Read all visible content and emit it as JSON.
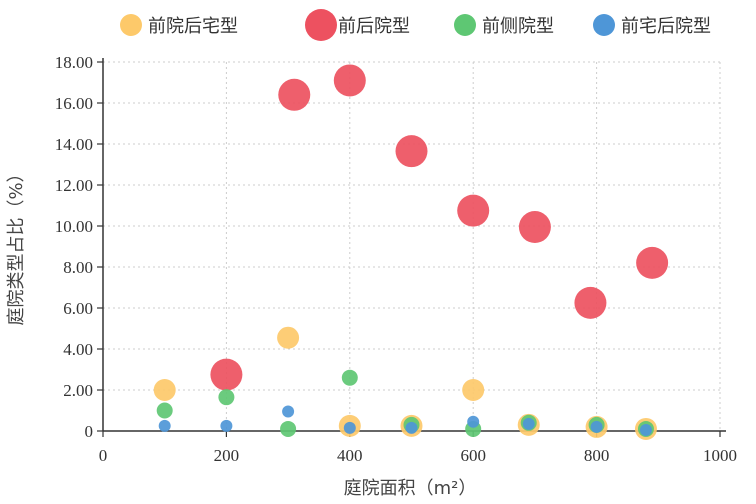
{
  "chart_data": {
    "type": "scatter",
    "xlabel": "庭院面积（m²）",
    "ylabel": "庭院类型占比（%）",
    "xlim": [
      0,
      1000
    ],
    "ylim": [
      0,
      18
    ],
    "x_ticks": [
      "0",
      "200",
      "400",
      "600",
      "800",
      "1000"
    ],
    "y_ticks": [
      "0",
      "2.00",
      "4.00",
      "6.00",
      "8.00",
      "10.00",
      "12.00",
      "14.00",
      "16.00",
      "18.00"
    ],
    "grid": "dotted",
    "legend_position": "top",
    "series": [
      {
        "name": "前院后宅型",
        "color": "#fdc96a",
        "points": [
          [
            100,
            2.0
          ],
          [
            300,
            4.55
          ],
          [
            400,
            0.25
          ],
          [
            500,
            0.25
          ],
          [
            600,
            2.0
          ],
          [
            690,
            0.3
          ],
          [
            800,
            0.2
          ],
          [
            880,
            0.1
          ]
        ]
      },
      {
        "name": "前后院型",
        "color": "#ed5160",
        "points": [
          [
            200,
            2.75
          ],
          [
            310,
            16.4
          ],
          [
            400,
            17.1
          ],
          [
            500,
            13.65
          ],
          [
            600,
            10.75
          ],
          [
            700,
            9.95
          ],
          [
            790,
            6.25
          ],
          [
            890,
            8.2
          ]
        ]
      },
      {
        "name": "前侧院型",
        "color": "#5ec773",
        "points": [
          [
            100,
            1.0
          ],
          [
            200,
            1.65
          ],
          [
            300,
            0.1
          ],
          [
            400,
            2.6
          ],
          [
            500,
            0.3
          ],
          [
            600,
            0.1
          ],
          [
            690,
            0.4
          ],
          [
            800,
            0.3
          ],
          [
            880,
            0.1
          ]
        ]
      },
      {
        "name": "前宅后院型",
        "color": "#4e96d7",
        "points": [
          [
            100,
            0.25
          ],
          [
            200,
            0.25
          ],
          [
            300,
            0.95
          ],
          [
            400,
            0.15
          ],
          [
            500,
            0.15
          ],
          [
            600,
            0.45
          ],
          [
            690,
            0.35
          ],
          [
            800,
            0.2
          ],
          [
            880,
            0.05
          ]
        ]
      }
    ]
  }
}
